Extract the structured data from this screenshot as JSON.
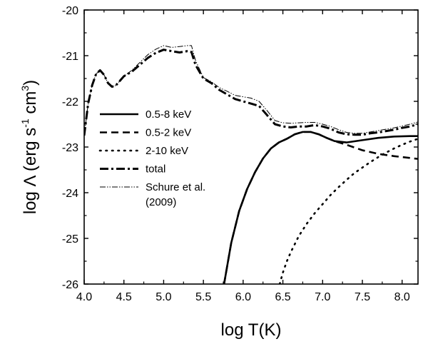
{
  "chart_data": {
    "type": "line",
    "xlabel": "log T(K)",
    "ylabel": {
      "prefix": "log Λ  (erg s",
      "exp1": "-1",
      "middle": " cm",
      "exp2": "3",
      "suffix": ")"
    },
    "xlim": [
      4.0,
      8.2
    ],
    "ylim": [
      -26,
      -20
    ],
    "x_ticks": [
      "4.0",
      "4.5",
      "5.0",
      "5.5",
      "6.0",
      "6.5",
      "7.0",
      "7.5",
      "8.0"
    ],
    "x_tick_values": [
      4.0,
      4.5,
      5.0,
      5.5,
      6.0,
      6.5,
      7.0,
      7.5,
      8.0
    ],
    "y_ticks": [
      "-20",
      "-21",
      "-22",
      "-23",
      "-24",
      "-25",
      "-26"
    ],
    "y_tick_values": [
      -20,
      -21,
      -22,
      -23,
      -24,
      -25,
      -26
    ],
    "legend": {
      "position": "center-left",
      "multiline_last": true
    },
    "series": [
      {
        "name": "0.5-8 keV",
        "style": "solid",
        "x": [
          5.76,
          5.85,
          5.95,
          6.05,
          6.15,
          6.25,
          6.35,
          6.45,
          6.55,
          6.65,
          6.75,
          6.85,
          6.95,
          7.05,
          7.15,
          7.3,
          7.5,
          7.7,
          7.9,
          8.1,
          8.2
        ],
        "y": [
          -26.0,
          -25.1,
          -24.4,
          -23.92,
          -23.55,
          -23.25,
          -23.03,
          -22.9,
          -22.82,
          -22.72,
          -22.67,
          -22.67,
          -22.72,
          -22.8,
          -22.87,
          -22.9,
          -22.85,
          -22.8,
          -22.77,
          -22.76,
          -22.76
        ]
      },
      {
        "name": "0.5-2 keV",
        "style": "dashed",
        "x": [
          5.76,
          5.85,
          5.95,
          6.05,
          6.15,
          6.25,
          6.35,
          6.45,
          6.55,
          6.65,
          6.75,
          6.85,
          6.95,
          7.05,
          7.15,
          7.3,
          7.5,
          7.7,
          7.9,
          8.1,
          8.2
        ],
        "y": [
          -26.0,
          -25.1,
          -24.4,
          -23.92,
          -23.55,
          -23.25,
          -23.03,
          -22.9,
          -22.82,
          -22.72,
          -22.67,
          -22.67,
          -22.72,
          -22.8,
          -22.87,
          -22.95,
          -23.07,
          -23.15,
          -23.2,
          -23.24,
          -23.26
        ]
      },
      {
        "name": "2-10 keV",
        "style": "dotted",
        "x": [
          6.46,
          6.5,
          6.55,
          6.6,
          6.7,
          6.8,
          6.9,
          7.0,
          7.1,
          7.2,
          7.3,
          7.4,
          7.5,
          7.6,
          7.7,
          7.8,
          7.9,
          8.0,
          8.1,
          8.2
        ],
        "y": [
          -26.0,
          -25.75,
          -25.5,
          -25.3,
          -24.95,
          -24.68,
          -24.45,
          -24.25,
          -24.05,
          -23.88,
          -23.72,
          -23.57,
          -23.45,
          -23.33,
          -23.22,
          -23.12,
          -23.03,
          -22.95,
          -22.88,
          -22.82
        ]
      },
      {
        "name": "total",
        "style": "dashdot",
        "x": [
          4.0,
          4.05,
          4.1,
          4.15,
          4.2,
          4.25,
          4.3,
          4.35,
          4.4,
          4.5,
          4.6,
          4.7,
          4.8,
          4.9,
          5.0,
          5.1,
          5.2,
          5.3,
          5.35,
          5.4,
          5.5,
          5.6,
          5.7,
          5.8,
          5.9,
          6.0,
          6.1,
          6.2,
          6.3,
          6.4,
          6.5,
          6.6,
          6.7,
          6.8,
          6.9,
          7.0,
          7.1,
          7.2,
          7.3,
          7.4,
          7.5,
          7.6,
          7.7,
          7.8,
          7.9,
          8.0,
          8.1,
          8.2
        ],
        "y": [
          -22.75,
          -22.05,
          -21.65,
          -21.4,
          -21.32,
          -21.42,
          -21.6,
          -21.68,
          -21.65,
          -21.45,
          -21.35,
          -21.2,
          -21.05,
          -20.94,
          -20.87,
          -20.9,
          -20.93,
          -20.9,
          -20.92,
          -21.2,
          -21.5,
          -21.6,
          -21.75,
          -21.85,
          -21.95,
          -22.0,
          -22.05,
          -22.1,
          -22.3,
          -22.5,
          -22.55,
          -22.57,
          -22.55,
          -22.55,
          -22.52,
          -22.55,
          -22.6,
          -22.68,
          -22.72,
          -22.73,
          -22.73,
          -22.7,
          -22.68,
          -22.65,
          -22.62,
          -22.58,
          -22.55,
          -22.5
        ]
      },
      {
        "name": "Schure et al. (2009)",
        "legend_lines": [
          "Schure et al.",
          "(2009)"
        ],
        "style": "dashdotdot",
        "x": [
          4.0,
          4.05,
          4.1,
          4.15,
          4.2,
          4.25,
          4.3,
          4.35,
          4.4,
          4.5,
          4.6,
          4.7,
          4.8,
          4.9,
          5.0,
          5.1,
          5.2,
          5.3,
          5.35,
          5.4,
          5.5,
          5.6,
          5.7,
          5.8,
          5.9,
          6.0,
          6.1,
          6.2,
          6.3,
          6.4,
          6.5,
          6.6,
          6.7,
          6.8,
          6.9,
          7.0,
          7.1,
          7.2,
          7.3,
          7.4,
          7.5,
          7.6,
          7.7,
          7.8,
          7.9,
          8.0,
          8.1,
          8.2
        ],
        "y": [
          -22.75,
          -22.05,
          -21.65,
          -21.4,
          -21.32,
          -21.42,
          -21.6,
          -21.68,
          -21.65,
          -21.45,
          -21.32,
          -21.15,
          -20.98,
          -20.86,
          -20.78,
          -20.82,
          -20.8,
          -20.78,
          -20.78,
          -21.1,
          -21.48,
          -21.57,
          -21.7,
          -21.78,
          -21.87,
          -21.9,
          -21.93,
          -22.0,
          -22.2,
          -22.42,
          -22.47,
          -22.48,
          -22.47,
          -22.46,
          -22.46,
          -22.5,
          -22.55,
          -22.62,
          -22.68,
          -22.7,
          -22.7,
          -22.67,
          -22.64,
          -22.61,
          -22.58,
          -22.54,
          -22.5,
          -22.45
        ]
      }
    ]
  }
}
